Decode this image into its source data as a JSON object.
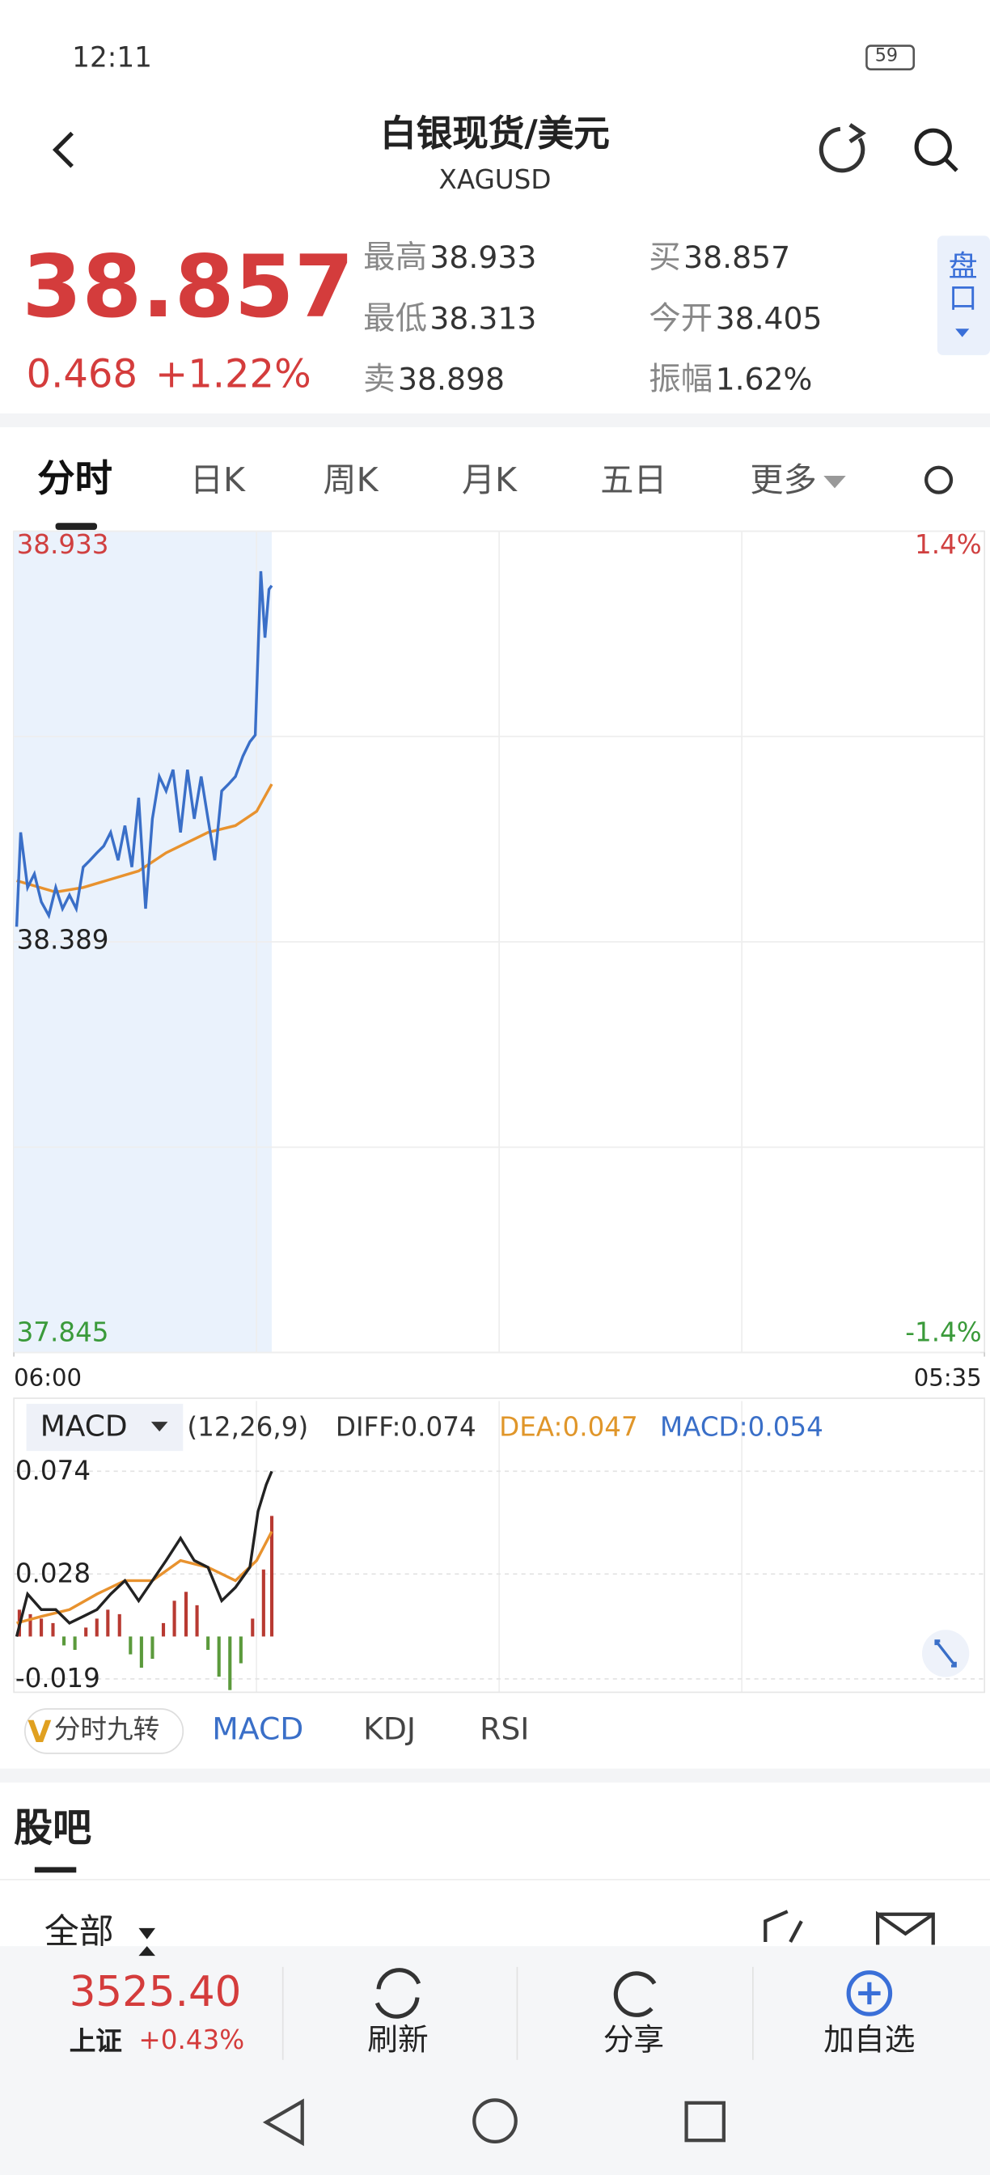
{
  "status_bar": {
    "time": "12:11",
    "battery": "59"
  },
  "header": {
    "title": "白银现货/美元",
    "subtitle": "XAGUSD"
  },
  "quote": {
    "price": "38.857",
    "change": "0.468",
    "change_pct": "+1.22%",
    "stats": [
      {
        "label": "最高",
        "value": "38.933"
      },
      {
        "label": "最低",
        "value": "38.313"
      },
      {
        "label": "卖",
        "value": "38.898"
      },
      {
        "label": "买",
        "value": "38.857"
      },
      {
        "label": "今开",
        "value": "38.405"
      },
      {
        "label": "振幅",
        "value": "1.62%"
      }
    ],
    "side_tab": "盘口"
  },
  "tabs": [
    "分时",
    "日K",
    "周K",
    "月K",
    "五日",
    "更多"
  ],
  "intraday_chart": {
    "type": "line",
    "xlim": [
      0,
      1415
    ],
    "xticks": [
      {
        "value": 0,
        "label": "06:00"
      },
      {
        "value": 1415,
        "label": "05:35"
      }
    ],
    "ylim": [
      37.845,
      38.933
    ],
    "yticks": [
      37.845,
      38.389,
      38.933
    ],
    "y2lim": [
      -1.4,
      1.4
    ],
    "y2ticks": [
      {
        "value": -1.4,
        "label": "-1.4%"
      },
      {
        "value": 1.4,
        "label": "1.4%"
      }
    ],
    "series": [
      {
        "color": "#3a6fc8",
        "x": [
          4,
          10,
          20,
          30,
          40,
          51,
          61,
          71,
          81,
          91,
          101,
          111,
          121,
          131,
          141,
          152,
          162,
          172,
          182,
          192,
          202,
          212,
          222,
          232,
          243,
          253,
          263,
          273,
          283,
          293,
          303,
          313,
          323,
          334,
          344,
          352,
          356,
          360,
          366,
          372,
          376
        ],
        "values": [
          38.409,
          38.534,
          38.461,
          38.479,
          38.442,
          38.424,
          38.461,
          38.433,
          38.451,
          38.433,
          38.488,
          38.497,
          38.507,
          38.516,
          38.534,
          38.497,
          38.543,
          38.488,
          38.58,
          38.433,
          38.552,
          38.608,
          38.589,
          38.617,
          38.534,
          38.617,
          38.552,
          38.608,
          38.552,
          38.497,
          38.589,
          38.598,
          38.608,
          38.635,
          38.654,
          38.663,
          38.773,
          38.88,
          38.792,
          38.856,
          38.861
        ]
      },
      {
        "color": "#e8922e",
        "x": [
          4,
          61,
          101,
          182,
          222,
          283,
          323,
          354,
          376
        ],
        "values": [
          38.47,
          38.455,
          38.461,
          38.483,
          38.507,
          38.534,
          38.543,
          38.562,
          38.598
        ]
      }
    ]
  },
  "macd_chart": {
    "type": "macd",
    "selector": "MACD",
    "legend": [
      "(12,26,9)",
      "DIFF:0.074",
      "DEA:0.047",
      "MACD:0.054"
    ],
    "xlim": [
      0,
      1415
    ],
    "ylim": [
      -0.025,
      0.08
    ],
    "yticks": [
      -0.019,
      0.028,
      0.074
    ],
    "series": [
      {
        "color": "#222222",
        "x": [
          4,
          20,
          40,
          61,
          81,
          101,
          121,
          141,
          162,
          182,
          202,
          222,
          243,
          263,
          283,
          303,
          323,
          344,
          356,
          368,
          376
        ],
        "values": [
          0,
          0.019,
          0.012,
          0.012,
          0.006,
          0.009,
          0.012,
          0.019,
          0.025,
          0.016,
          0.025,
          0.034,
          0.044,
          0.034,
          0.031,
          0.016,
          0.022,
          0.031,
          0.056,
          0.068,
          0.074
        ]
      },
      {
        "color": "#e8922e",
        "x": [
          4,
          40,
          81,
          121,
          162,
          202,
          243,
          283,
          323,
          354,
          376
        ],
        "values": [
          0.006,
          0.009,
          0.012,
          0.019,
          0.025,
          0.025,
          0.034,
          0.031,
          0.025,
          0.034,
          0.047
        ]
      }
    ],
    "histogram": {
      "up_color": "#b83a32",
      "down_color": "#5b9a3c",
      "x": [
        8,
        24,
        40,
        57,
        73,
        89,
        105,
        121,
        137,
        154,
        170,
        186,
        202,
        218,
        234,
        251,
        267,
        283,
        299,
        315,
        331,
        348,
        364,
        376
      ],
      "values": [
        0.012,
        0.01,
        0.008,
        0.006,
        -0.004,
        -0.006,
        0.004,
        0.008,
        0.012,
        0.01,
        -0.008,
        -0.014,
        -0.01,
        0.006,
        0.016,
        0.02,
        0.014,
        -0.006,
        -0.018,
        -0.024,
        -0.012,
        0.008,
        0.03,
        0.054
      ]
    }
  },
  "indicator_tabs": [
    "分时九转",
    "MACD",
    "KDJ",
    "RSI"
  ],
  "forum": {
    "title": "股吧",
    "filter": "全部"
  },
  "bottom_bar": {
    "index_value": "3525.40",
    "index_name": "上证",
    "index_pct": "+0.43%",
    "buttons": [
      "刷新",
      "分享",
      "加自选"
    ]
  }
}
